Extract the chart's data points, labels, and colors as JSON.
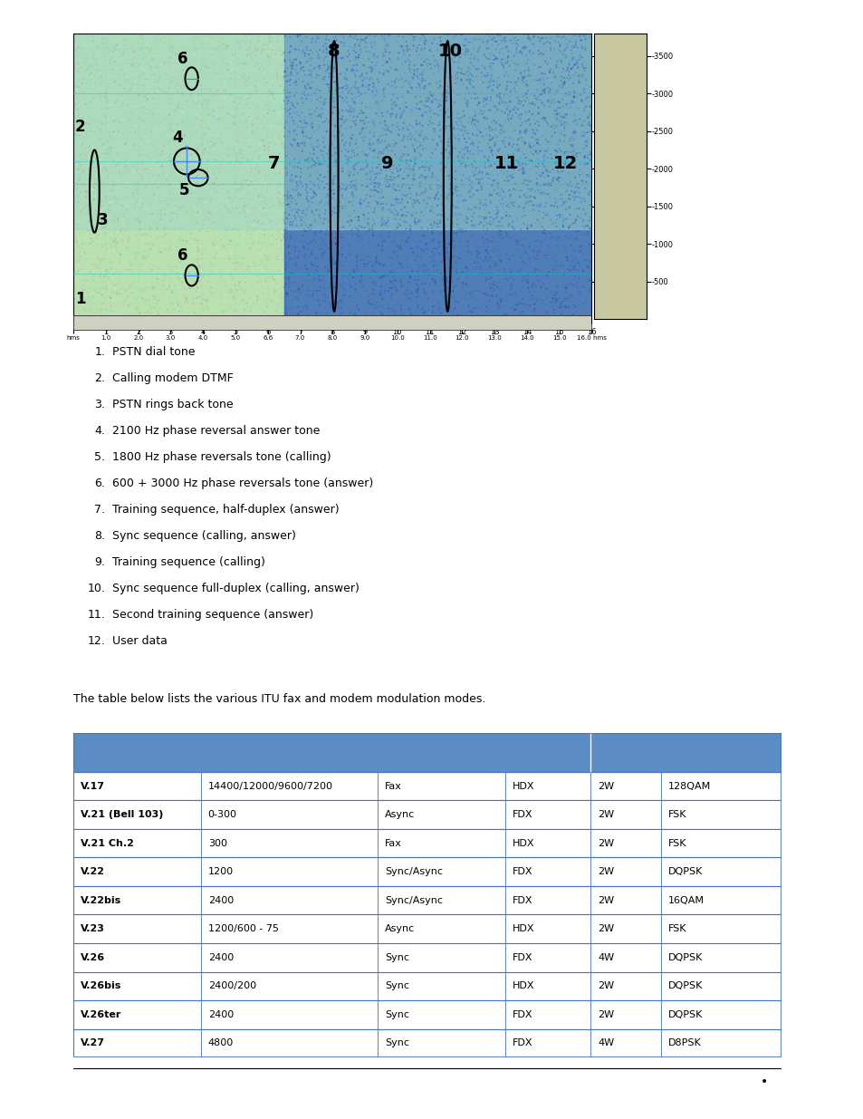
{
  "list_items": [
    "PSTN dial tone",
    "Calling modem DTMF",
    "PSTN rings back tone",
    "2100 Hz phase reversal answer tone",
    "1800 Hz phase reversals tone (calling)",
    "600 + 3000 Hz phase reversals tone (answer)",
    "Training sequence, half-duplex (answer)",
    "Sync sequence (calling, answer)",
    "Training sequence (calling)",
    "Sync sequence full-duplex (calling, answer)",
    "Second training sequence (answer)",
    "User data"
  ],
  "intro_text": "The table below lists the various ITU fax and modem modulation modes.",
  "table_header_color": "#5b8dc4",
  "table_border_color": "#4472c4",
  "table_rows": [
    [
      "V.17",
      "14400/12000/9600/7200",
      "Fax",
      "HDX",
      "2W",
      "128QAM"
    ],
    [
      "V.21 (Bell 103)",
      "0-300",
      "Async",
      "FDX",
      "2W",
      "FSK"
    ],
    [
      "V.21 Ch.2",
      "300",
      "Fax",
      "HDX",
      "2W",
      "FSK"
    ],
    [
      "V.22",
      "1200",
      "Sync/Async",
      "FDX",
      "2W",
      "DQPSK"
    ],
    [
      "V.22bis",
      "2400",
      "Sync/Async",
      "FDX",
      "2W",
      "16QAM"
    ],
    [
      "V.23",
      "1200/600 - 75",
      "Async",
      "HDX",
      "2W",
      "FSK"
    ],
    [
      "V.26",
      "2400",
      "Sync",
      "FDX",
      "4W",
      "DQPSK"
    ],
    [
      "V.26bis",
      "2400/200",
      "Sync",
      "HDX",
      "2W",
      "DQPSK"
    ],
    [
      "V.26ter",
      "2400",
      "Sync",
      "FDX",
      "2W",
      "DQPSK"
    ],
    [
      "V.27",
      "4800",
      "Sync",
      "FDX",
      "4W",
      "D8PSK"
    ]
  ],
  "page_bg": "#ffffff",
  "text_color": "#000000",
  "footer_line_color": "#000000",
  "bullet_color": "#000000"
}
